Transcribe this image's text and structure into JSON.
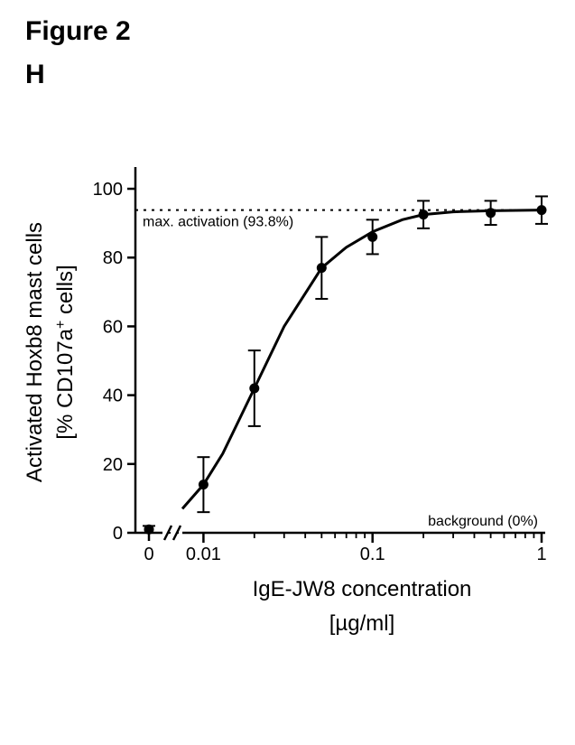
{
  "figure": {
    "title": "Figure 2",
    "panel_letter": "H",
    "title_fontsize": 30,
    "panel_fontsize": 30
  },
  "chart": {
    "type": "scatter-line",
    "y_label_line1": "Activated Hoxb8 mast cells",
    "y_label_line2": "[% CD107a",
    "y_label_line2_sup": "+",
    "y_label_line2_tail": " cells]",
    "x_label_line1": "IgE-JW8 concentration",
    "x_label_line2": "[µg/ml]",
    "label_fontsize": 24,
    "tick_fontsize": 20,
    "annotation_max": "max. activation (93.8%)",
    "annotation_bg": "background (0%)",
    "annotation_fontsize": 16,
    "ylim": [
      0,
      105
    ],
    "yticks": [
      0,
      20,
      40,
      60,
      80,
      100
    ],
    "x_zero_label": "0",
    "x_log_ticks_major": [
      0.01,
      0.1,
      1
    ],
    "x_log_labels": [
      "0.01",
      "0.1",
      "1"
    ],
    "x_log_minor": [
      0.02,
      0.03,
      0.04,
      0.05,
      0.06,
      0.07,
      0.08,
      0.09,
      0.2,
      0.3,
      0.4,
      0.5,
      0.6,
      0.7,
      0.8,
      0.9
    ],
    "max_line_y": 93.8,
    "bg_line_y": 0,
    "data": [
      {
        "x": 0.01,
        "y": 14,
        "err": 8
      },
      {
        "x": 0.02,
        "y": 42,
        "err": 11
      },
      {
        "x": 0.05,
        "y": 77,
        "err": 9
      },
      {
        "x": 0.1,
        "y": 86,
        "err": 5
      },
      {
        "x": 0.2,
        "y": 92.5,
        "err": 4
      },
      {
        "x": 0.5,
        "y": 93,
        "err": 3.5
      },
      {
        "x": 1.0,
        "y": 93.8,
        "err": 4
      }
    ],
    "zero_point": {
      "y": 1,
      "err": 1
    },
    "curve": [
      {
        "x": 0.0075,
        "y": 7
      },
      {
        "x": 0.01,
        "y": 14
      },
      {
        "x": 0.013,
        "y": 23
      },
      {
        "x": 0.02,
        "y": 42
      },
      {
        "x": 0.03,
        "y": 60
      },
      {
        "x": 0.05,
        "y": 77
      },
      {
        "x": 0.07,
        "y": 83
      },
      {
        "x": 0.1,
        "y": 87.5
      },
      {
        "x": 0.15,
        "y": 91
      },
      {
        "x": 0.2,
        "y": 92.5
      },
      {
        "x": 0.3,
        "y": 93.3
      },
      {
        "x": 0.5,
        "y": 93.6
      },
      {
        "x": 1.0,
        "y": 93.8
      }
    ],
    "colors": {
      "axis": "#000000",
      "marker": "#000000",
      "line": "#000000",
      "dotted": "#000000",
      "bg": "#ffffff"
    },
    "marker_radius": 5.5,
    "line_width": 3,
    "axis_width": 2.5,
    "err_cap": 7
  }
}
